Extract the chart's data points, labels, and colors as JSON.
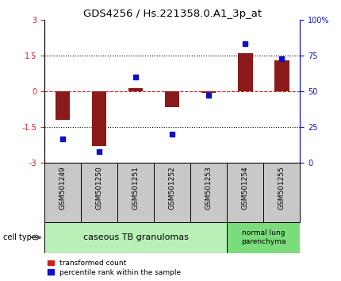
{
  "title": "GDS4256 / Hs.221358.0.A1_3p_at",
  "samples": [
    "GSM501249",
    "GSM501250",
    "GSM501251",
    "GSM501252",
    "GSM501253",
    "GSM501254",
    "GSM501255"
  ],
  "transformed_count": [
    -1.2,
    -2.3,
    0.12,
    -0.65,
    -0.05,
    1.6,
    1.3
  ],
  "percentile_rank": [
    17,
    8,
    60,
    20,
    47,
    83,
    73
  ],
  "ylim_left": [
    -3,
    3
  ],
  "ylim_right": [
    0,
    100
  ],
  "yticks_left": [
    -3,
    -1.5,
    0,
    1.5,
    3
  ],
  "ytick_labels_left": [
    "-3",
    "-1.5",
    "0",
    "1.5",
    "3"
  ],
  "yticks_right": [
    0,
    25,
    50,
    75,
    100
  ],
  "ytick_labels_right": [
    "0",
    "25",
    "50",
    "75",
    "100%"
  ],
  "bar_color": "#8B1a1a",
  "dot_color": "#1010cc",
  "dotted_line_color": "black",
  "red_dashed_color": "#cc2222",
  "cell_type_groups": [
    {
      "label": "caseous TB granulomas",
      "start": 0,
      "end": 5,
      "color": "#b8f0b8"
    },
    {
      "label": "normal lung\nparenchyma",
      "start": 5,
      "end": 7,
      "color": "#7adc7a"
    }
  ],
  "legend_items": [
    {
      "color": "#cc2222",
      "label": "transformed count"
    },
    {
      "color": "#1010cc",
      "label": "percentile rank within the sample"
    }
  ],
  "bar_width": 0.4,
  "marker_size": 5
}
